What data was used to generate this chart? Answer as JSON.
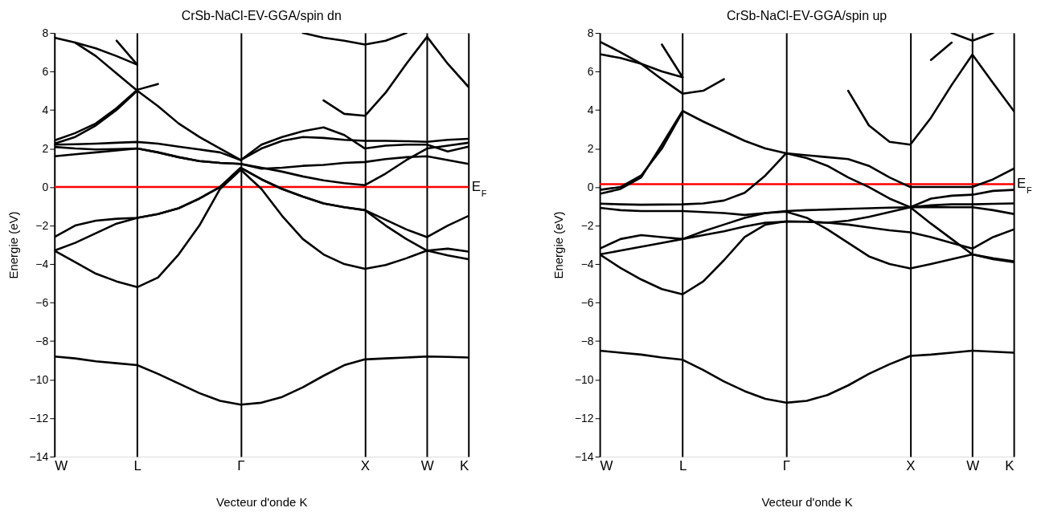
{
  "chart_data": [
    {
      "type": "line",
      "title": "CrSb-NaCl-EV-GGA/spin dn",
      "xlabel": "Vecteur d'onde K",
      "ylabel": "Energie (eV)",
      "categories": [
        "W",
        null,
        null,
        null,
        "L",
        null,
        null,
        null,
        null,
        "Γ",
        null,
        null,
        null,
        null,
        null,
        "X",
        null,
        null,
        "W",
        null,
        "K"
      ],
      "ylim": [
        -14,
        8
      ],
      "yticks": [
        -14,
        -12,
        -10,
        -8,
        -6,
        -4,
        -2,
        0,
        2,
        4,
        6,
        8
      ],
      "grid": "x",
      "ref_lines": [
        {
          "axis": "y",
          "value": 0,
          "label": "E$_{F}$",
          "color": "#ff0000"
        }
      ],
      "series": [
        {
          "color": "#000000",
          "values": [
            -8.8,
            -8.9,
            -9.05,
            -9.15,
            -9.25,
            -9.7,
            -10.2,
            -10.7,
            -11.1,
            -11.3,
            -11.2,
            -10.9,
            -10.4,
            -9.8,
            -9.25,
            -8.95,
            -8.9,
            -8.85,
            -8.8,
            -8.82,
            -8.85
          ]
        },
        {
          "color": "#000000",
          "values": [
            -3.3,
            -3.9,
            -4.5,
            -4.9,
            -5.2,
            -4.7,
            -3.5,
            -2.0,
            -0.1,
            0.9,
            -0.1,
            -1.5,
            -2.7,
            -3.5,
            -4.0,
            -4.25,
            -4.05,
            -3.7,
            -3.3,
            -3.2,
            -3.35
          ]
        },
        {
          "color": "#000000",
          "values": [
            -2.6,
            -2.0,
            -1.75,
            -1.65,
            -1.6,
            -1.4,
            -1.1,
            -0.6,
            0.0,
            1.0,
            0.4,
            -0.1,
            -0.5,
            -0.85,
            -1.05,
            -1.2,
            -1.7,
            -2.2,
            -2.6,
            -2.0,
            -1.5
          ]
        },
        {
          "color": "#000000",
          "values": [
            -3.3,
            -2.9,
            -2.4,
            -1.9,
            -1.6,
            -1.4,
            -1.1,
            -0.6,
            0.0,
            1.0,
            0.4,
            -0.1,
            -0.5,
            -0.85,
            -1.05,
            -1.2,
            -2.0,
            -2.7,
            -3.3,
            -3.55,
            -3.75
          ]
        },
        {
          "color": "#000000",
          "values": [
            1.6,
            1.7,
            1.8,
            1.9,
            2.0,
            1.8,
            1.55,
            1.35,
            1.25,
            1.2,
            1.0,
            0.8,
            0.55,
            0.35,
            0.2,
            0.1,
            0.7,
            1.4,
            2.0,
            2.15,
            2.3
          ]
        },
        {
          "color": "#000000",
          "values": [
            2.08,
            2.0,
            1.95,
            1.97,
            2.0,
            1.8,
            1.55,
            1.35,
            1.25,
            1.2,
            0.95,
            1.0,
            1.1,
            1.15,
            1.25,
            1.3,
            1.45,
            1.55,
            1.6,
            1.4,
            1.2
          ]
        },
        {
          "color": "#000000",
          "values": [
            2.2,
            2.22,
            2.25,
            2.3,
            2.34,
            2.25,
            2.1,
            1.95,
            1.8,
            1.4,
            2.2,
            2.6,
            2.9,
            3.1,
            2.7,
            2.0,
            2.15,
            2.2,
            2.2,
            1.85,
            2.1
          ]
        },
        {
          "color": "#000000",
          "values": [
            2.25,
            2.6,
            3.2,
            4.0,
            5.0,
            4.2,
            3.3,
            2.6,
            2.0,
            1.4,
            2.0,
            2.4,
            2.6,
            2.55,
            2.45,
            2.4,
            2.4,
            2.38,
            2.35,
            2.45,
            2.5
          ]
        },
        {
          "color": "#000000",
          "values": [
            2.42,
            2.8,
            3.3,
            4.1,
            5.05,
            5.35,
            null,
            null,
            null,
            null,
            null,
            null,
            null,
            null,
            null,
            null,
            null,
            null,
            null,
            null,
            null
          ]
        },
        {
          "color": "#000000",
          "values": [
            null,
            7.5,
            6.8,
            5.9,
            5.0,
            null,
            null,
            null,
            null,
            null,
            null,
            null,
            null,
            null,
            null,
            null,
            null,
            null,
            null,
            null,
            null
          ]
        },
        {
          "color": "#000000",
          "values": [
            7.75,
            7.5,
            7.2,
            6.8,
            6.35,
            null,
            null,
            null,
            null,
            null,
            null,
            null,
            null,
            null,
            null,
            null,
            null,
            null,
            null,
            null,
            null
          ]
        },
        {
          "color": "#000000",
          "values": [
            null,
            null,
            null,
            7.6,
            6.35,
            null,
            null,
            null,
            null,
            null,
            null,
            null,
            null,
            null,
            null,
            null,
            null,
            null,
            null,
            null,
            null
          ]
        },
        {
          "color": "#000000",
          "values": [
            null,
            null,
            null,
            null,
            null,
            null,
            null,
            null,
            null,
            null,
            null,
            null,
            null,
            4.5,
            3.8,
            3.7,
            4.9,
            6.4,
            7.8,
            6.4,
            5.2
          ]
        },
        {
          "color": "#000000",
          "values": [
            null,
            null,
            null,
            null,
            null,
            null,
            null,
            null,
            null,
            null,
            null,
            null,
            8,
            7.75,
            7.6,
            7.4,
            7.6,
            8,
            null,
            null,
            null
          ]
        }
      ]
    },
    {
      "type": "line",
      "title": "CrSb-NaCl-EV-GGA/spin up",
      "xlabel": "Vecteur d'onde K",
      "ylabel": "Energie (eV)",
      "categories": [
        "W",
        null,
        null,
        null,
        "L",
        null,
        null,
        null,
        null,
        "Γ",
        null,
        null,
        null,
        null,
        null,
        "X",
        null,
        null,
        "W",
        null,
        "K"
      ],
      "ylim": [
        -14,
        8
      ],
      "yticks": [
        -14,
        -12,
        -10,
        -8,
        -6,
        -4,
        -2,
        0,
        2,
        4,
        6,
        8
      ],
      "grid": "x",
      "ref_lines": [
        {
          "axis": "y",
          "value": 0.15,
          "label": "E$_{F}$",
          "color": "#ff0000"
        }
      ],
      "series": [
        {
          "color": "#000000",
          "values": [
            -8.5,
            -8.6,
            -8.7,
            -8.85,
            -8.97,
            -9.5,
            -10.1,
            -10.6,
            -11.0,
            -11.2,
            -11.1,
            -10.8,
            -10.3,
            -9.7,
            -9.2,
            -8.77,
            -8.7,
            -8.6,
            -8.5,
            -8.55,
            -8.6
          ]
        },
        {
          "color": "#000000",
          "values": [
            -3.5,
            -4.2,
            -4.8,
            -5.3,
            -5.57,
            -4.9,
            -3.8,
            -2.6,
            -1.95,
            -1.78,
            -1.8,
            -1.85,
            -1.95,
            -2.1,
            -2.25,
            -2.35,
            -2.6,
            -2.9,
            -3.2,
            -2.6,
            -2.2
          ]
        },
        {
          "color": "#000000",
          "values": [
            -3.2,
            -2.7,
            -2.5,
            -2.6,
            -2.7,
            -2.5,
            -2.3,
            -2.05,
            -1.85,
            -1.8,
            -1.8,
            -1.85,
            -1.75,
            -1.55,
            -1.3,
            -1.05,
            -0.6,
            -0.45,
            -0.4,
            -0.2,
            -0.15
          ]
        },
        {
          "color": "#000000",
          "values": [
            -3.5,
            -3.3,
            -3.1,
            -2.9,
            -2.7,
            -2.3,
            -1.95,
            -1.6,
            -1.35,
            -1.28,
            -1.6,
            -2.2,
            -2.9,
            -3.6,
            -4.0,
            -4.23,
            -4.0,
            -3.75,
            -3.5,
            -3.75,
            -3.9
          ]
        },
        {
          "color": "#000000",
          "values": [
            -0.35,
            -0.1,
            0.5,
            2.2,
            3.95,
            3.4,
            2.9,
            2.4,
            2.0,
            1.75,
            1.5,
            1.1,
            0.5,
            0.0,
            -0.6,
            -1.05,
            -1.9,
            -2.7,
            -3.5,
            -3.7,
            -3.85
          ]
        },
        {
          "color": "#000000",
          "values": [
            -0.15,
            0.0,
            0.6,
            2.0,
            3.9,
            null,
            null,
            null,
            null,
            null,
            null,
            null,
            null,
            null,
            null,
            null,
            null,
            null,
            null,
            null,
            null
          ]
        },
        {
          "color": "#000000",
          "values": [
            -0.86,
            -0.9,
            -0.92,
            -0.91,
            -0.9,
            -0.85,
            -0.7,
            -0.3,
            0.6,
            1.75,
            1.65,
            1.55,
            1.45,
            1.1,
            0.5,
            0.0,
            0.0,
            0.0,
            0.0,
            0.4,
            0.95
          ]
        },
        {
          "color": "#000000",
          "values": [
            -1.08,
            -1.2,
            -1.25,
            -1.25,
            -1.25,
            -1.3,
            -1.35,
            -1.45,
            -1.35,
            -1.25,
            -1.2,
            -1.17,
            -1.13,
            -1.1,
            -1.07,
            -1.05,
            -1.05,
            -1.05,
            -1.05,
            -1.2,
            -1.4
          ]
        },
        {
          "color": "#000000",
          "values": [
            null,
            null,
            null,
            null,
            null,
            null,
            null,
            null,
            null,
            null,
            null,
            null,
            null,
            null,
            null,
            -1.05,
            -0.95,
            -0.9,
            -0.9,
            -0.87,
            -0.85
          ]
        },
        {
          "color": "#000000",
          "values": [
            7.55,
            7.0,
            6.4,
            5.6,
            4.85,
            5.0,
            5.6,
            null,
            null,
            null,
            null,
            null,
            null,
            null,
            null,
            null,
            null,
            null,
            null,
            null,
            null
          ]
        },
        {
          "color": "#000000",
          "values": [
            6.9,
            6.7,
            6.4,
            6.0,
            5.7,
            null,
            null,
            null,
            null,
            null,
            null,
            null,
            null,
            null,
            null,
            null,
            null,
            null,
            null,
            null,
            null
          ]
        },
        {
          "color": "#000000",
          "values": [
            null,
            null,
            null,
            7.4,
            5.7,
            null,
            null,
            null,
            null,
            null,
            null,
            null,
            null,
            null,
            null,
            null,
            null,
            null,
            null,
            null,
            null
          ]
        },
        {
          "color": "#000000",
          "values": [
            null,
            null,
            null,
            null,
            null,
            null,
            null,
            null,
            null,
            null,
            null,
            null,
            5.0,
            3.2,
            2.35,
            2.2,
            3.6,
            5.3,
            6.88,
            5.4,
            3.95
          ]
        },
        {
          "color": "#000000",
          "values": [
            null,
            null,
            null,
            null,
            null,
            null,
            null,
            null,
            null,
            null,
            null,
            null,
            null,
            null,
            null,
            null,
            6.6,
            7.5,
            null,
            null,
            null
          ]
        },
        {
          "color": "#000000",
          "values": [
            null,
            null,
            null,
            null,
            null,
            null,
            null,
            null,
            null,
            null,
            null,
            null,
            null,
            null,
            null,
            null,
            null,
            8,
            7.6,
            8,
            null
          ]
        }
      ]
    }
  ]
}
